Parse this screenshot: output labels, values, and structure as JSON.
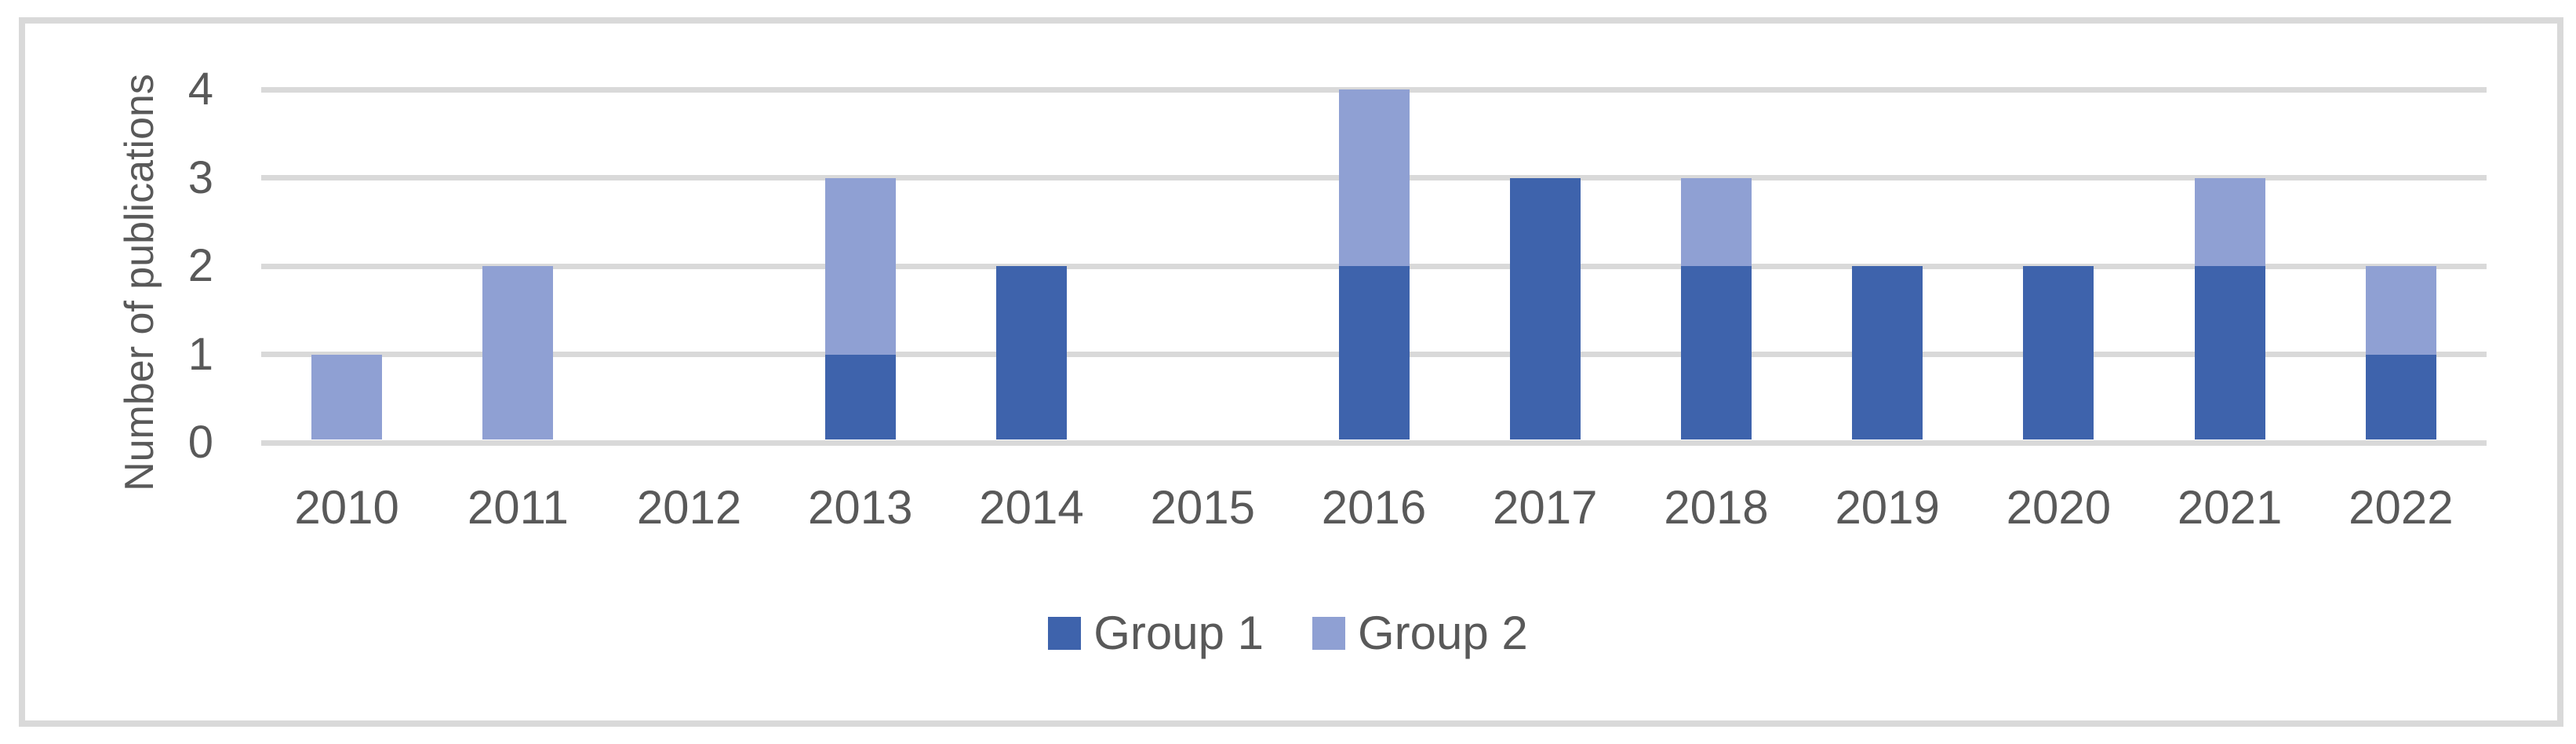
{
  "chart_data": {
    "type": "bar",
    "stacked": true,
    "categories": [
      "2010",
      "2011",
      "2012",
      "2013",
      "2014",
      "2015",
      "2016",
      "2017",
      "2018",
      "2019",
      "2020",
      "2021",
      "2022"
    ],
    "series": [
      {
        "name": "Group 1",
        "color": "#3E63AC",
        "values": [
          0,
          0,
          0,
          1,
          2,
          0,
          2,
          3,
          2,
          2,
          2,
          2,
          1
        ]
      },
      {
        "name": "Group 2",
        "color": "#8FA0D3",
        "values": [
          1,
          2,
          0,
          2,
          0,
          0,
          2,
          0,
          1,
          0,
          0,
          1,
          1
        ]
      }
    ],
    "ylabel": "Number of publications",
    "xlabel": "",
    "ylim": [
      0,
      4
    ],
    "yticks": [
      0,
      1,
      2,
      3,
      4
    ],
    "grid": true,
    "legend_position": "bottom-center",
    "colors": {
      "gridline": "#D9D9D9",
      "frame_border": "#D9D9D9",
      "axis_text": "#595959",
      "background": "#FFFFFF"
    }
  }
}
